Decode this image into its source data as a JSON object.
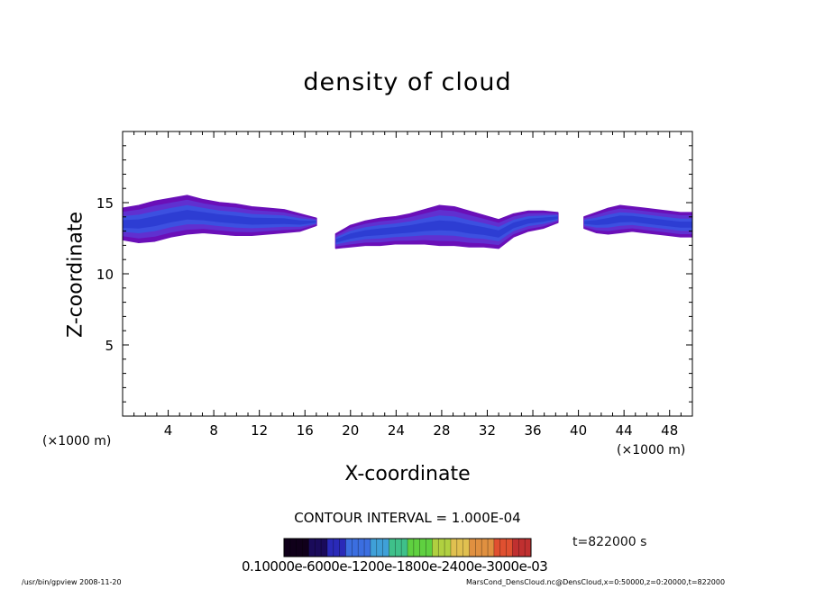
{
  "chart_data": {
    "type": "heatmap",
    "title": "density of cloud",
    "xlabel": "X-coordinate",
    "ylabel": "Z-coordinate",
    "x_unit_left": "(×1000 m)",
    "x_unit_right": "(×1000 m)",
    "xlim": [
      0,
      50
    ],
    "ylim": [
      0,
      20
    ],
    "xticks": [
      "4",
      "8",
      "12",
      "16",
      "20",
      "24",
      "28",
      "32",
      "36",
      "40",
      "44",
      "48"
    ],
    "yticks": [
      "5",
      "10",
      "15"
    ],
    "contour_interval": "CONTOUR INTERVAL = 1.000E-04",
    "time_label": "t=822000 s",
    "colorbar_labels": "0.10000e-6000e-1200e-1800e-2400e-3000e-03",
    "colorbar_colors": [
      "#10001a",
      "#1a0b5a",
      "#2a2ab8",
      "#3b6ee0",
      "#3fa0d8",
      "#3fc08a",
      "#5fd040",
      "#b0d040",
      "#e0c050",
      "#e09040",
      "#e05030",
      "#c03030"
    ],
    "cloud_colors": {
      "edge": "#6a0fb8",
      "outer": "#6030d0",
      "inner": "#3c50e0",
      "core": "#2a3ad0",
      "dark": "#2230a8"
    },
    "regions": [
      {
        "name": "left",
        "x_start": 0,
        "x_end": 17,
        "z_top": [
          14.6,
          14.8,
          15.1,
          15.3,
          15.5,
          15.2,
          15.0,
          14.9,
          14.7,
          14.6,
          14.5,
          14.2,
          13.9
        ],
        "z_bottom": [
          12.4,
          12.2,
          12.3,
          12.6,
          12.8,
          12.9,
          12.8,
          12.7,
          12.7,
          12.8,
          12.9,
          13.0,
          13.4
        ]
      },
      {
        "name": "middle",
        "x_start": 18.7,
        "x_end": 38.2,
        "z_top": [
          12.8,
          13.4,
          13.7,
          13.9,
          14.0,
          14.2,
          14.5,
          14.8,
          14.7,
          14.4,
          14.1,
          13.8,
          14.2,
          14.4,
          14.4,
          14.3
        ],
        "z_bottom": [
          11.8,
          11.9,
          12.0,
          12.0,
          12.1,
          12.1,
          12.1,
          12.0,
          12.0,
          11.9,
          11.9,
          11.8,
          12.6,
          13.0,
          13.2,
          13.6
        ]
      },
      {
        "name": "right",
        "x_start": 40.5,
        "x_end": 50,
        "z_top": [
          14.0,
          14.3,
          14.6,
          14.8,
          14.7,
          14.6,
          14.5,
          14.4,
          14.3,
          14.3
        ],
        "z_bottom": [
          13.2,
          12.9,
          12.8,
          12.9,
          13.0,
          12.9,
          12.8,
          12.7,
          12.6,
          12.6
        ]
      }
    ]
  },
  "footer": {
    "left": "/usr/bin/gpview   2008-11-20",
    "right": "MarsCond_DensCloud.nc@DensCloud,x=0:50000,z=0:20000,t=822000"
  }
}
